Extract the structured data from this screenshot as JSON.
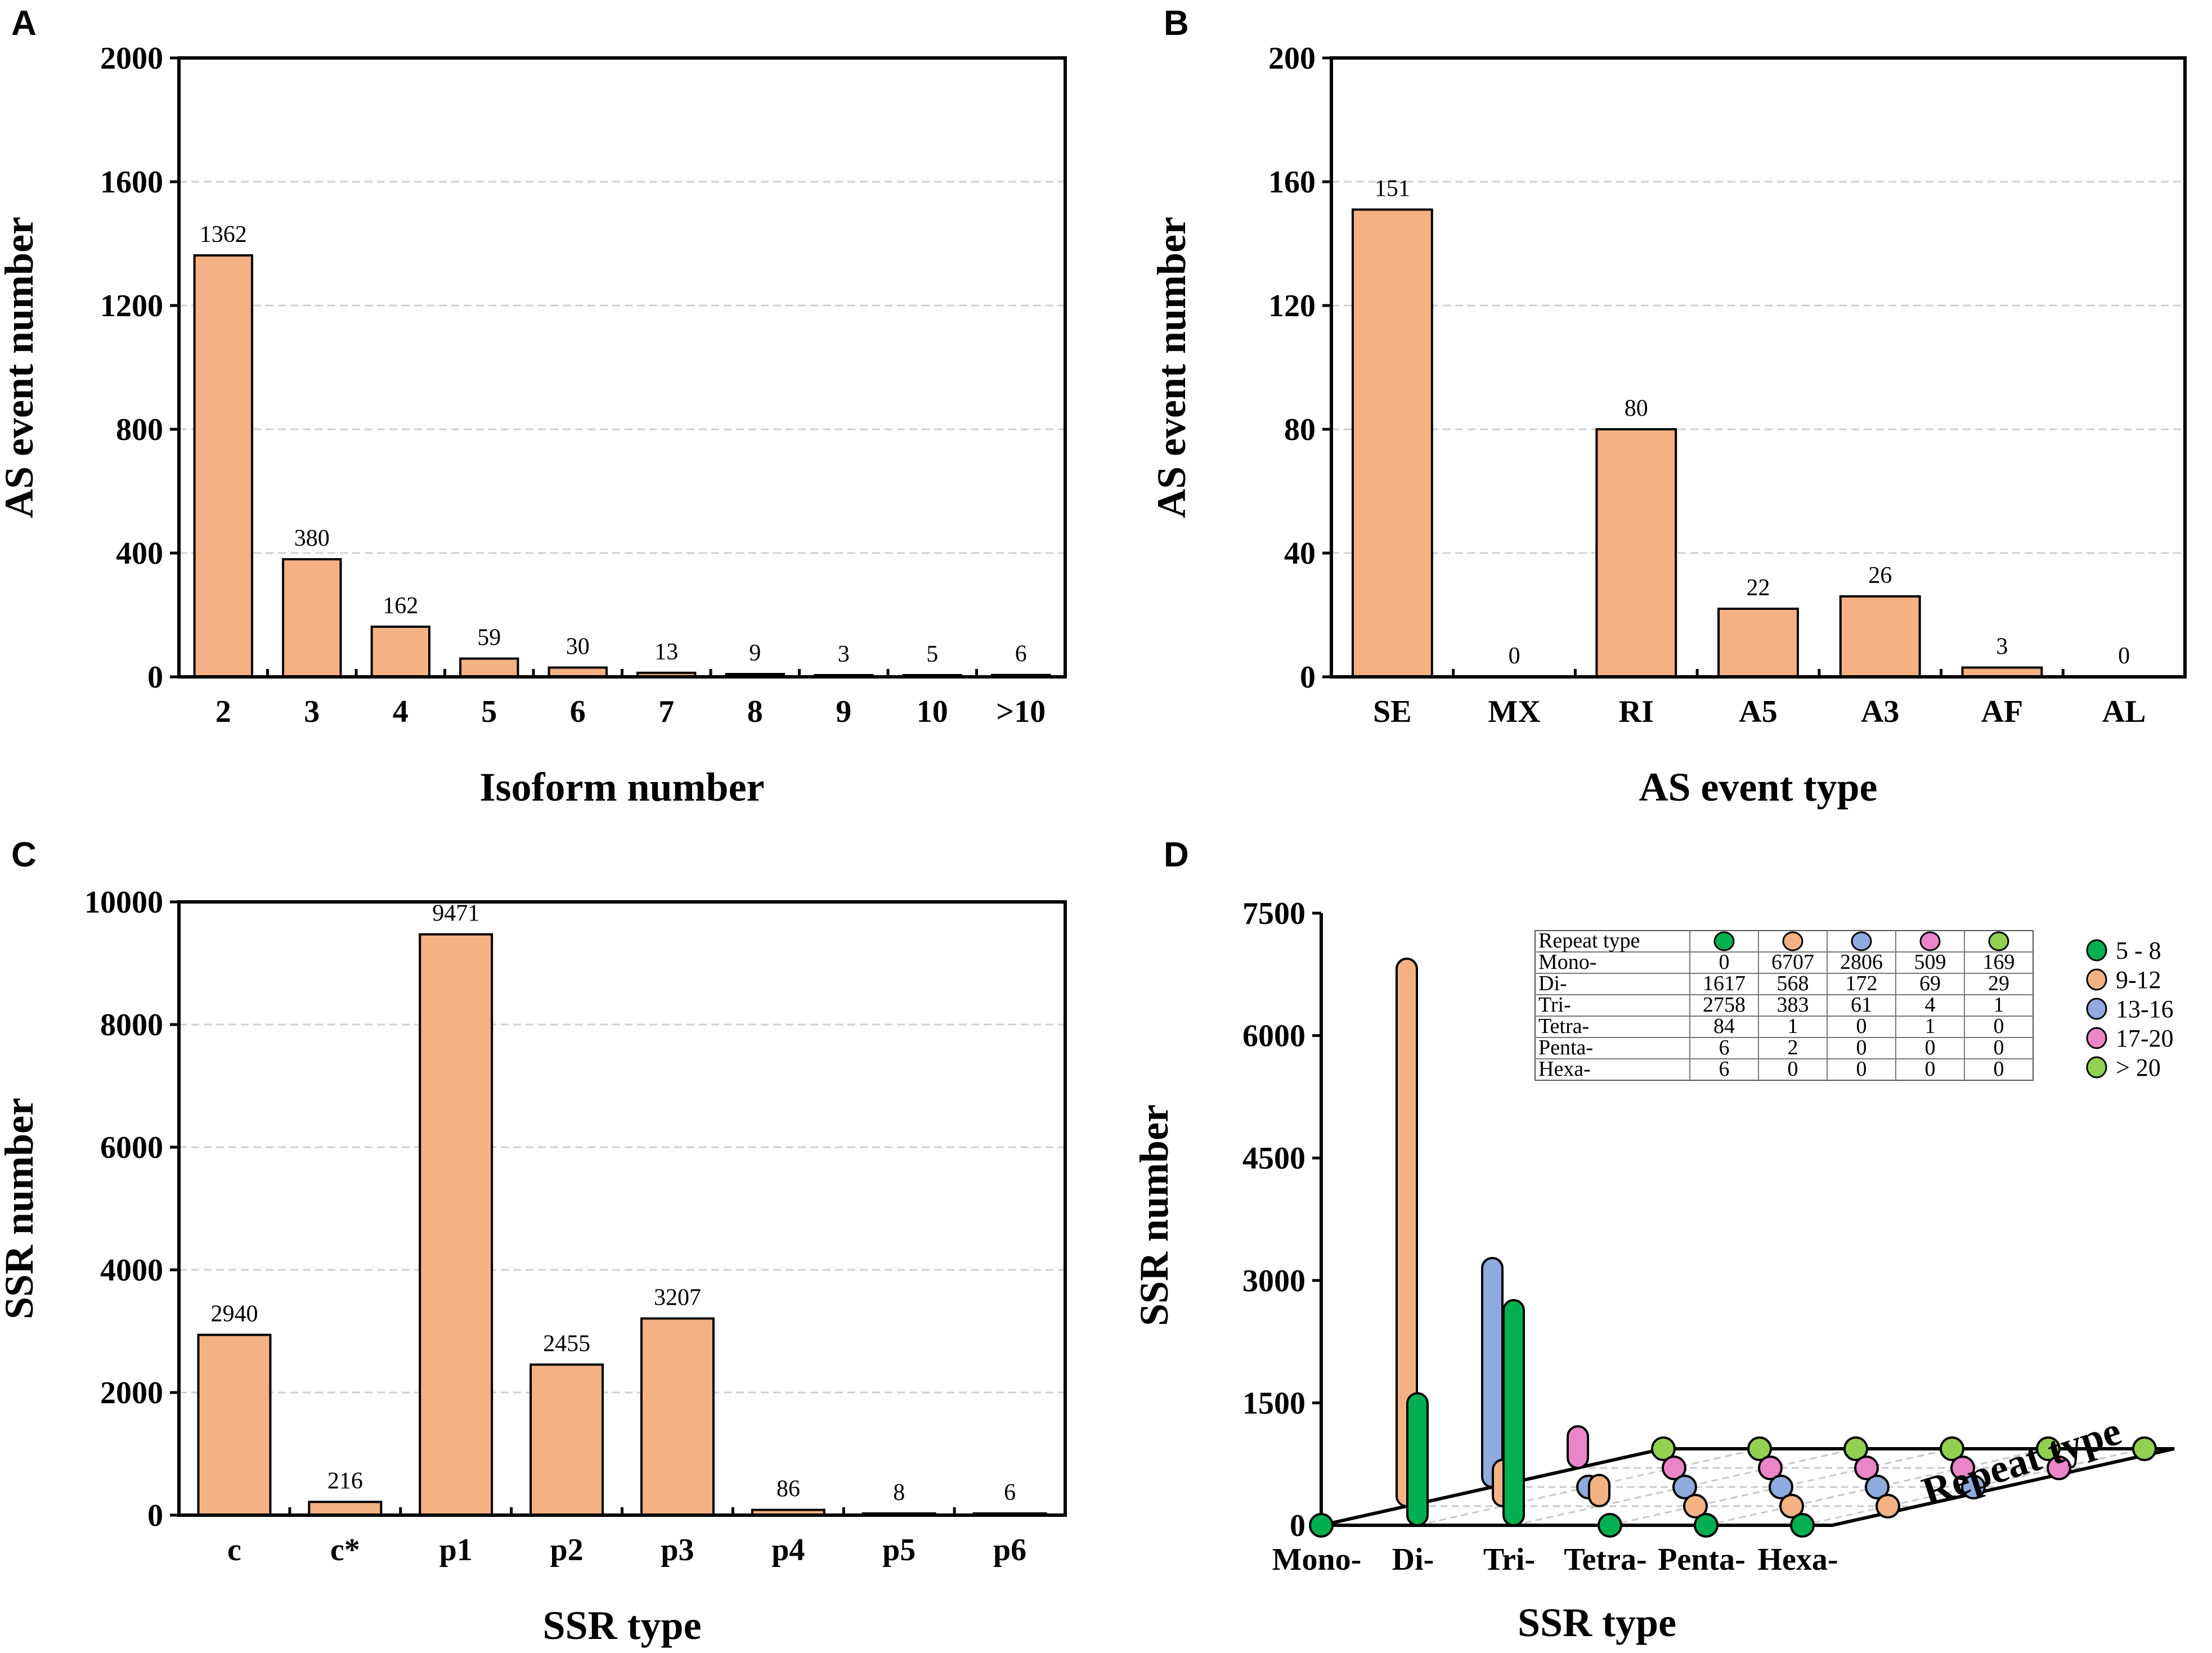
{
  "colors": {
    "bar": "#f4b183",
    "frame": "#000000",
    "grid": "#d0d0d0",
    "c5_8": "#00b050",
    "c9_12": "#f4b183",
    "c13_16": "#8faadc",
    "c17_20": "#ea86c8",
    "c20p": "#92d050"
  },
  "chart_data": [
    {
      "panel": "A",
      "type": "bar",
      "xlabel": "Isoform number",
      "ylabel": "AS event number",
      "ylim": [
        0,
        2000
      ],
      "yticks": [
        "0",
        "400",
        "800",
        "1200",
        "1600",
        "2000"
      ],
      "categories": [
        "2",
        "3",
        "4",
        "5",
        "6",
        "7",
        "8",
        "9",
        "10",
        ">10"
      ],
      "values": [
        1362,
        380,
        162,
        59,
        30,
        13,
        9,
        3,
        5,
        6
      ],
      "data_labels": [
        "1362",
        "380",
        "162",
        "59",
        "30",
        "13",
        "9",
        "3",
        "5",
        "6"
      ]
    },
    {
      "panel": "B",
      "type": "bar",
      "xlabel": "AS event type",
      "ylabel": "AS event number",
      "ylim": [
        0,
        200
      ],
      "yticks": [
        "0",
        "40",
        "80",
        "120",
        "160",
        "200"
      ],
      "categories": [
        "SE",
        "MX",
        "RI",
        "A5",
        "A3",
        "AF",
        "AL"
      ],
      "values": [
        151,
        0,
        80,
        22,
        26,
        3,
        0
      ],
      "data_labels": [
        "151",
        "0",
        "80",
        "22",
        "26",
        "3",
        "0"
      ]
    },
    {
      "panel": "C",
      "type": "bar",
      "xlabel": "SSR type",
      "ylabel": "SSR number",
      "ylim": [
        0,
        10000
      ],
      "yticks": [
        "0",
        "2000",
        "4000",
        "6000",
        "8000",
        "10000"
      ],
      "categories": [
        "c",
        "c*",
        "p1",
        "p2",
        "p3",
        "p4",
        "p5",
        "p6"
      ],
      "values": [
        2940,
        216,
        9471,
        2455,
        3207,
        86,
        8,
        6
      ],
      "data_labels": [
        "2940",
        "216",
        "9471",
        "2455",
        "3207",
        "86",
        "8",
        "6"
      ]
    },
    {
      "panel": "D",
      "type": "bar3d",
      "xlabel": "SSR type",
      "ylabel": "SSR number",
      "depth_label": "Repeat type",
      "ylim": [
        0,
        7500
      ],
      "yticks": [
        "0",
        "1500",
        "3000",
        "4500",
        "6000",
        "7500"
      ],
      "categories": [
        "Mono-",
        "Di-",
        "Tri-",
        "Tetra-",
        "Penta-",
        "Hexa-"
      ],
      "series": [
        {
          "name": "5 - 8",
          "color_key": "c5_8",
          "values": [
            0,
            1617,
            2758,
            84,
            6,
            6
          ]
        },
        {
          "name": "9-12",
          "color_key": "c9_12",
          "values": [
            6707,
            568,
            383,
            1,
            2,
            0
          ]
        },
        {
          "name": "13-16",
          "color_key": "c13_16",
          "values": [
            2806,
            172,
            61,
            0,
            0,
            0
          ]
        },
        {
          "name": "17-20",
          "color_key": "c17_20",
          "values": [
            509,
            69,
            4,
            1,
            0,
            0
          ]
        },
        {
          "name": "> 20",
          "color_key": "c20p",
          "values": [
            169,
            29,
            1,
            0,
            0,
            0
          ]
        }
      ],
      "table_header": "Repeat type"
    }
  ]
}
